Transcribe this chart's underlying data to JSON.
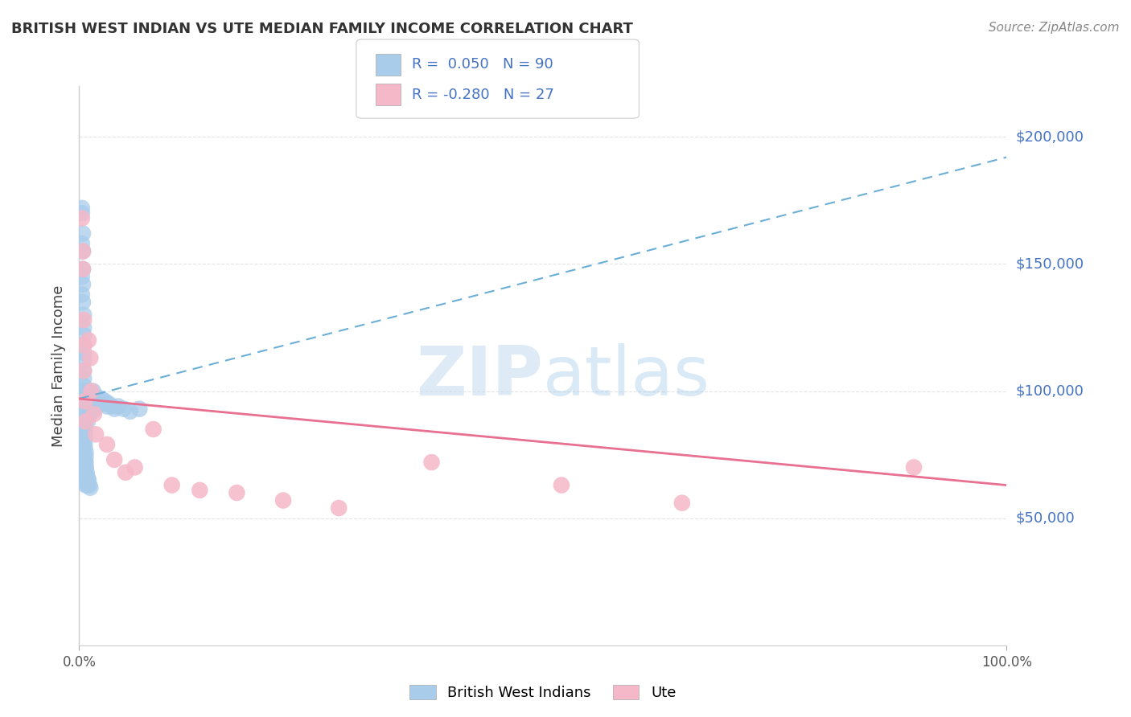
{
  "title": "BRITISH WEST INDIAN VS UTE MEDIAN FAMILY INCOME CORRELATION CHART",
  "source_text": "Source: ZipAtlas.com",
  "ylabel": "Median Family Income",
  "legend_r_blue": "0.050",
  "legend_n_blue": "90",
  "legend_r_pink": "-0.280",
  "legend_n_pink": "27",
  "watermark_zip": "ZIP",
  "watermark_atlas": "atlas",
  "blue_color": "#A8CCEA",
  "pink_color": "#F5B8C8",
  "blue_line_color": "#6BAED6",
  "pink_line_color": "#E87090",
  "ytick_labels": [
    "$50,000",
    "$100,000",
    "$150,000",
    "$200,000"
  ],
  "ytick_values": [
    50000,
    100000,
    150000,
    200000
  ],
  "ylim": [
    0,
    220000
  ],
  "xlim": [
    0.0,
    1.0
  ],
  "blue_line_x0": 0.0,
  "blue_line_y0": 97000,
  "blue_line_x1": 1.0,
  "blue_line_y1": 192000,
  "pink_line_x0": 0.0,
  "pink_line_y0": 97000,
  "pink_line_x1": 1.0,
  "pink_line_y1": 63000,
  "blue_x": [
    0.003,
    0.003,
    0.003,
    0.003,
    0.003,
    0.004,
    0.004,
    0.004,
    0.004,
    0.004,
    0.005,
    0.005,
    0.005,
    0.005,
    0.005,
    0.005,
    0.005,
    0.005,
    0.005,
    0.005,
    0.005,
    0.005,
    0.005,
    0.005,
    0.005,
    0.005,
    0.006,
    0.006,
    0.006,
    0.006,
    0.006,
    0.007,
    0.007,
    0.007,
    0.007,
    0.008,
    0.008,
    0.008,
    0.008,
    0.009,
    0.009,
    0.009,
    0.01,
    0.01,
    0.01,
    0.011,
    0.011,
    0.012,
    0.012,
    0.013,
    0.014,
    0.015,
    0.015,
    0.016,
    0.017,
    0.018,
    0.019,
    0.02,
    0.022,
    0.024,
    0.026,
    0.028,
    0.03,
    0.032,
    0.035,
    0.038,
    0.042,
    0.048,
    0.055,
    0.065,
    0.003,
    0.003,
    0.004,
    0.004,
    0.005,
    0.005,
    0.005,
    0.006,
    0.006,
    0.006,
    0.007,
    0.007,
    0.007,
    0.008,
    0.008,
    0.009,
    0.009,
    0.01,
    0.011,
    0.012
  ],
  "blue_y": [
    170000,
    158000,
    145000,
    138000,
    172000,
    162000,
    155000,
    148000,
    142000,
    135000,
    130000,
    125000,
    122000,
    118000,
    115000,
    112000,
    108000,
    105000,
    102000,
    100000,
    98000,
    96000,
    94000,
    92000,
    90000,
    88000,
    86000,
    84000,
    82000,
    80000,
    78000,
    76000,
    74000,
    72000,
    70000,
    100000,
    97000,
    94000,
    90000,
    98000,
    95000,
    88000,
    100000,
    97000,
    93000,
    96000,
    91000,
    98000,
    93000,
    96000,
    92000,
    100000,
    95000,
    96000,
    93000,
    98000,
    95000,
    97000,
    95000,
    97000,
    95000,
    96000,
    94000,
    95000,
    94000,
    93000,
    94000,
    93000,
    92000,
    93000,
    68000,
    65000,
    70000,
    66000,
    75000,
    72000,
    68000,
    72000,
    69000,
    65000,
    70000,
    67000,
    63000,
    68000,
    65000,
    66000,
    63000,
    65000,
    63000,
    62000
  ],
  "pink_x": [
    0.003,
    0.004,
    0.004,
    0.005,
    0.005,
    0.005,
    0.006,
    0.007,
    0.01,
    0.012,
    0.013,
    0.016,
    0.018,
    0.03,
    0.038,
    0.05,
    0.06,
    0.08,
    0.1,
    0.13,
    0.17,
    0.22,
    0.28,
    0.38,
    0.52,
    0.65,
    0.9
  ],
  "pink_y": [
    168000,
    155000,
    148000,
    128000,
    118000,
    108000,
    96000,
    88000,
    120000,
    113000,
    100000,
    91000,
    83000,
    79000,
    73000,
    68000,
    70000,
    85000,
    63000,
    61000,
    60000,
    57000,
    54000,
    72000,
    63000,
    56000,
    70000
  ],
  "bg_color": "#FFFFFF",
  "grid_color": "#DDDDDD",
  "title_color": "#333333",
  "source_color": "#888888"
}
